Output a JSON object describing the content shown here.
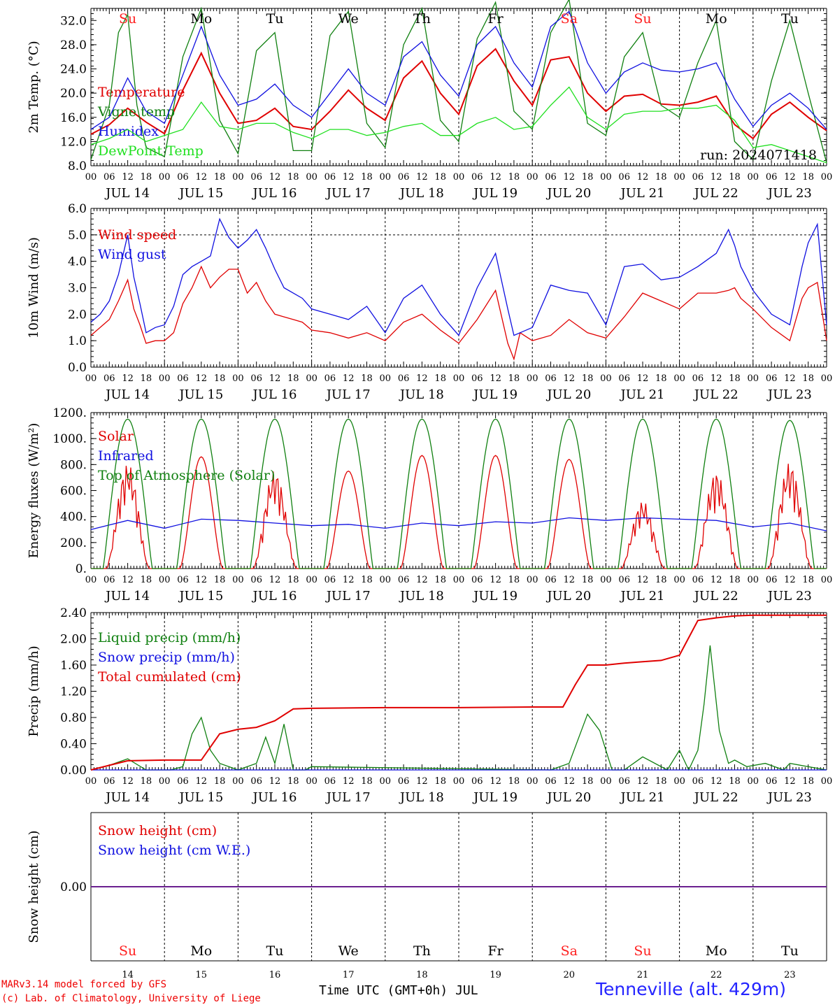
{
  "run": "run: 2024071418",
  "days": [
    "JUL 14",
    "JUL 15",
    "JUL 16",
    "JUL 17",
    "JUL 18",
    "JUL 19",
    "JUL 20",
    "JUL 21",
    "JUL 22",
    "JUL 23"
  ],
  "weekdays": [
    "Su",
    "Mo",
    "Tu",
    "We",
    "Th",
    "Fr",
    "Sa",
    "Su",
    "Mo",
    "Tu"
  ],
  "day_numbers": [
    "14",
    "15",
    "16",
    "17",
    "18",
    "19",
    "20",
    "21",
    "22",
    "23"
  ],
  "hour_ticks": [
    "00",
    "06",
    "12",
    "18"
  ],
  "last_hour": "00",
  "footer": {
    "credit1": "MARv3.14 model forced by GFS",
    "credit2": "(c) Lab. of Climatology, University of Liege",
    "xtitle": "Time UTC (GMT+0h) JUL",
    "station": "Tenneville (alt. 429m)"
  },
  "colors": {
    "weekend": "#ff2020",
    "red": "#e00000",
    "green": "#108010",
    "blue": "#1010e0",
    "lime": "#20e020",
    "purple": "#6a2090"
  },
  "chart_data": [
    {
      "type": "line",
      "ylabel": "2m Temp. (°C)",
      "ylim": [
        8,
        34
      ],
      "yticks": [
        "8.0",
        "12.0",
        "16.0",
        "20.0",
        "24.0",
        "28.0",
        "32.0"
      ],
      "x_unit": "hours from JUL 14 00 UTC",
      "grid": "vertical dashed at 00 UTC",
      "series": [
        {
          "name": "Temperature",
          "color": "red",
          "x": [
            0,
            6,
            12,
            18,
            24,
            30,
            36,
            42,
            48,
            54,
            60,
            66,
            72,
            78,
            84,
            90,
            96,
            102,
            108,
            114,
            120,
            126,
            132,
            138,
            144,
            150,
            156,
            162,
            168,
            174,
            180,
            186,
            192,
            198,
            204,
            210,
            216,
            222,
            228,
            234,
            240
          ],
          "values": [
            13.2,
            14.8,
            17.5,
            15.2,
            13.3,
            20.5,
            26.6,
            20.0,
            15.0,
            15.5,
            17.5,
            14.5,
            14.0,
            17.0,
            20.5,
            17.5,
            15.5,
            22.5,
            25.3,
            20.0,
            16.5,
            24.5,
            27.3,
            22.0,
            18.0,
            25.5,
            26.0,
            20.0,
            17.0,
            19.5,
            19.8,
            18.2,
            18.0,
            18.5,
            19.5,
            14.8,
            12.5,
            16.5,
            18.5,
            16.0,
            13.8
          ]
        },
        {
          "name": "Vigne temp",
          "color": "green",
          "x": [
            0,
            6,
            9,
            12,
            15,
            18,
            24,
            30,
            36,
            42,
            48,
            54,
            60,
            66,
            72,
            78,
            84,
            90,
            96,
            102,
            108,
            114,
            120,
            126,
            132,
            138,
            144,
            150,
            156,
            162,
            168,
            174,
            180,
            186,
            192,
            198,
            204,
            210,
            216,
            222,
            228,
            234,
            240
          ],
          "values": [
            9.0,
            18.0,
            30.0,
            33.0,
            18.0,
            11.0,
            9.5,
            26.0,
            34.0,
            15.5,
            10.0,
            27.0,
            30.0,
            10.5,
            10.5,
            29.5,
            33.5,
            15.0,
            11.0,
            28.0,
            34.0,
            15.5,
            12.0,
            29.0,
            35.0,
            17.0,
            14.0,
            30.0,
            35.5,
            15.0,
            13.0,
            26.0,
            30.0,
            18.0,
            16.0,
            25.0,
            32.0,
            12.0,
            9.0,
            22.0,
            32.0,
            20.0,
            8.5
          ]
        },
        {
          "name": "Humidex",
          "color": "blue",
          "x": [
            0,
            6,
            12,
            18,
            24,
            30,
            36,
            42,
            48,
            54,
            60,
            66,
            72,
            78,
            84,
            90,
            96,
            102,
            108,
            114,
            120,
            126,
            132,
            138,
            144,
            150,
            156,
            162,
            168,
            174,
            180,
            186,
            192,
            198,
            204,
            210,
            216,
            222,
            228,
            234,
            240
          ],
          "values": [
            14.0,
            16.0,
            22.5,
            17.0,
            15.0,
            23.0,
            31.0,
            23.0,
            18.0,
            19.0,
            21.5,
            18.0,
            16.0,
            20.0,
            24.0,
            20.0,
            18.0,
            26.0,
            28.5,
            23.0,
            19.5,
            28.0,
            31.0,
            25.0,
            21.0,
            31.0,
            33.5,
            25.0,
            20.0,
            23.5,
            25.0,
            23.8,
            23.5,
            24.0,
            25.0,
            19.0,
            14.5,
            18.0,
            20.0,
            17.5,
            14.0
          ]
        },
        {
          "name": "DewPoint Temp",
          "color": "lime",
          "x": [
            0,
            6,
            12,
            18,
            24,
            30,
            36,
            42,
            48,
            54,
            60,
            66,
            72,
            78,
            84,
            90,
            96,
            102,
            108,
            114,
            120,
            126,
            132,
            138,
            144,
            150,
            156,
            162,
            168,
            174,
            180,
            186,
            192,
            198,
            204,
            210,
            216,
            222,
            228,
            234,
            240
          ],
          "values": [
            11.5,
            12.5,
            14.0,
            12.0,
            13.0,
            14.0,
            18.5,
            14.5,
            14.0,
            15.0,
            15.0,
            13.5,
            12.5,
            14.0,
            14.0,
            13.0,
            13.5,
            14.5,
            15.0,
            13.0,
            13.0,
            15.0,
            16.0,
            14.0,
            14.5,
            18.0,
            21.0,
            16.0,
            14.0,
            16.5,
            17.0,
            17.0,
            17.5,
            17.5,
            18.0,
            15.5,
            11.0,
            11.5,
            10.5,
            9.5,
            8.5
          ]
        }
      ]
    },
    {
      "type": "line",
      "ylabel": "10m Wind (m/s)",
      "ylim": [
        0,
        6
      ],
      "yticks": [
        "0.0",
        "1.0",
        "2.0",
        "3.0",
        "4.0",
        "5.0",
        "6.0"
      ],
      "hline": 5,
      "series": [
        {
          "name": "Wind speed",
          "color": "red",
          "x": [
            0,
            3,
            6,
            9,
            12,
            14,
            16,
            18,
            21,
            24,
            27,
            30,
            33,
            36,
            39,
            42,
            45,
            48,
            51,
            54,
            57,
            60,
            63,
            66,
            69,
            72,
            78,
            84,
            90,
            96,
            102,
            108,
            114,
            120,
            126,
            132,
            136,
            138,
            140,
            144,
            150,
            156,
            162,
            168,
            174,
            180,
            186,
            192,
            198,
            204,
            208,
            210,
            212,
            216,
            222,
            228,
            232,
            234,
            237,
            240
          ],
          "values": [
            1.2,
            1.5,
            1.8,
            2.5,
            3.3,
            2.2,
            1.6,
            0.9,
            1.0,
            1.0,
            1.3,
            2.4,
            3.0,
            3.8,
            3.0,
            3.4,
            3.7,
            3.7,
            2.8,
            3.2,
            2.5,
            2.0,
            1.9,
            1.8,
            1.7,
            1.4,
            1.3,
            1.1,
            1.3,
            1.0,
            1.7,
            2.0,
            1.4,
            0.9,
            1.8,
            2.9,
            0.9,
            0.3,
            1.3,
            1.0,
            1.2,
            1.8,
            1.3,
            1.1,
            1.9,
            2.8,
            2.5,
            2.2,
            2.8,
            2.8,
            2.9,
            3.0,
            2.6,
            2.2,
            1.5,
            1.0,
            2.6,
            3.0,
            3.2,
            1.0
          ]
        },
        {
          "name": "Wind gust",
          "color": "blue",
          "x": [
            0,
            3,
            6,
            9,
            12,
            14,
            16,
            18,
            21,
            24,
            27,
            30,
            33,
            36,
            39,
            42,
            45,
            48,
            51,
            54,
            57,
            60,
            63,
            66,
            69,
            72,
            78,
            84,
            90,
            96,
            102,
            108,
            114,
            120,
            126,
            132,
            136,
            138,
            140,
            144,
            150,
            156,
            162,
            168,
            174,
            180,
            186,
            192,
            198,
            204,
            208,
            210,
            212,
            216,
            222,
            228,
            232,
            234,
            237,
            240
          ],
          "values": [
            1.7,
            2.0,
            2.5,
            3.5,
            5.0,
            3.4,
            2.4,
            1.3,
            1.5,
            1.6,
            2.3,
            3.5,
            3.8,
            4.0,
            4.2,
            5.6,
            4.9,
            4.5,
            4.8,
            5.2,
            4.5,
            3.7,
            3.0,
            2.8,
            2.6,
            2.2,
            2.0,
            1.8,
            2.3,
            1.3,
            2.6,
            3.1,
            2.0,
            1.2,
            3.0,
            4.3,
            2.2,
            1.2,
            1.3,
            1.5,
            3.1,
            2.9,
            2.8,
            1.6,
            3.8,
            3.9,
            3.3,
            3.4,
            3.8,
            4.3,
            5.2,
            4.6,
            3.8,
            2.9,
            2.0,
            1.6,
            3.8,
            4.7,
            5.4,
            1.6
          ]
        }
      ]
    },
    {
      "type": "line",
      "ylabel": "Energy fluxes (W/m²)",
      "ylim": [
        0,
        1200
      ],
      "yticks": [
        "0.",
        "200.",
        "400.",
        "600.",
        "800.",
        "1000.",
        "1200."
      ],
      "series": [
        {
          "name": "Solar",
          "color": "red",
          "peaks": [
            810,
            860,
            760,
            750,
            870,
            870,
            840,
            520,
            750,
            820
          ]
        },
        {
          "name": "Infrared",
          "color": "blue",
          "x": [
            0,
            12,
            24,
            36,
            48,
            60,
            72,
            84,
            96,
            108,
            120,
            132,
            144,
            156,
            168,
            180,
            192,
            204,
            216,
            228,
            240
          ],
          "values": [
            300,
            370,
            310,
            380,
            370,
            350,
            330,
            340,
            310,
            350,
            330,
            360,
            350,
            390,
            370,
            390,
            380,
            370,
            320,
            350,
            290
          ]
        },
        {
          "name": "Top of Atmosphere (Solar)",
          "color": "green",
          "peaks": [
            1150,
            1150,
            1150,
            1150,
            1150,
            1150,
            1150,
            1150,
            1150,
            1140
          ]
        }
      ]
    },
    {
      "type": "line",
      "ylabel": "Precip (mm/h)",
      "ylim": [
        0,
        2.4
      ],
      "yticks": [
        "0.00",
        "0.40",
        "0.80",
        "1.20",
        "1.60",
        "2.00",
        "2.40"
      ],
      "series": [
        {
          "name": "Liquid precip (mm/h)",
          "color": "green",
          "x": [
            0,
            6,
            12,
            18,
            26,
            30,
            33,
            36,
            39,
            42,
            48,
            54,
            57,
            60,
            63,
            66,
            70,
            72,
            150,
            156,
            160,
            162,
            166,
            170,
            174,
            180,
            188,
            192,
            195,
            198,
            200,
            202,
            205,
            208,
            210,
            214,
            220,
            226,
            228,
            240
          ],
          "values": [
            0,
            0.07,
            0.17,
            0,
            0,
            0.05,
            0.55,
            0.8,
            0.3,
            0.1,
            0,
            0.1,
            0.5,
            0.1,
            0.7,
            0,
            0,
            0.05,
            0,
            0.1,
            0.6,
            0.85,
            0.6,
            0,
            0,
            0.2,
            0,
            0.3,
            0,
            0.3,
            1.0,
            1.9,
            0.6,
            0.1,
            0.15,
            0.05,
            0.1,
            0,
            0.1,
            0
          ]
        },
        {
          "name": "Snow precip (mm/h)",
          "color": "blue",
          "x": [
            0,
            240
          ],
          "values": [
            0,
            0
          ]
        },
        {
          "name": "Total cumulated (cm)",
          "color": "red",
          "x": [
            0,
            6,
            12,
            24,
            36,
            42,
            48,
            54,
            60,
            66,
            72,
            96,
            120,
            144,
            154,
            158,
            162,
            168,
            174,
            180,
            186,
            192,
            198,
            204,
            210,
            216,
            240
          ],
          "values": [
            0,
            0.07,
            0.14,
            0.15,
            0.15,
            0.55,
            0.62,
            0.65,
            0.75,
            0.93,
            0.94,
            0.95,
            0.95,
            0.96,
            0.96,
            1.3,
            1.6,
            1.6,
            1.63,
            1.65,
            1.67,
            1.75,
            2.28,
            2.32,
            2.35,
            2.36,
            2.36
          ]
        }
      ]
    },
    {
      "type": "line",
      "ylabel": "Snow height (cm)",
      "ylim": [
        -1,
        1
      ],
      "yticks": [
        "0.00"
      ],
      "series": [
        {
          "name": "Snow height (cm)",
          "color": "red",
          "x": [
            0,
            240
          ],
          "values": [
            0,
            0
          ]
        },
        {
          "name": "Snow height (cm W.E.)",
          "color": "blue",
          "x": [
            0,
            240
          ],
          "values": [
            0,
            0
          ]
        }
      ]
    }
  ]
}
